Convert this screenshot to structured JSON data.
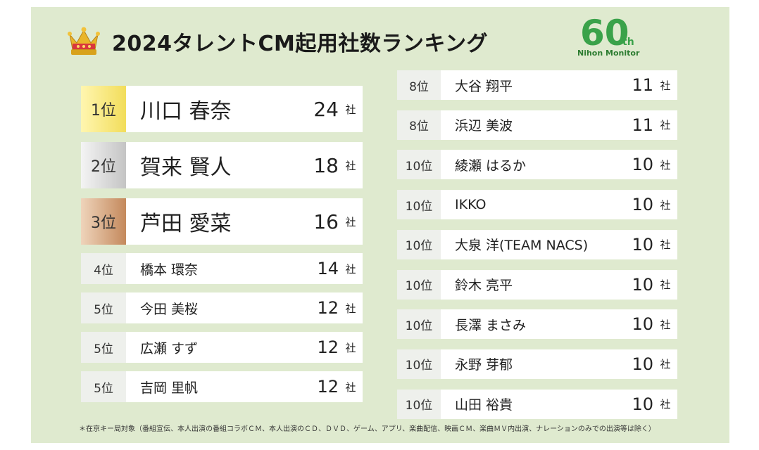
{
  "title": "2024タレントCM起用社数ランキング",
  "logo": {
    "number": "60",
    "suffix": "th",
    "name": "Nihon Monitor"
  },
  "unit": "社",
  "rankings_left": [
    {
      "rank": "1位",
      "name": "川口 春奈",
      "count": "24",
      "tier": "gold"
    },
    {
      "rank": "2位",
      "name": "賀来 賢人",
      "count": "18",
      "tier": "silver"
    },
    {
      "rank": "3位",
      "name": "芦田 愛菜",
      "count": "16",
      "tier": "bronze"
    },
    {
      "rank": "4位",
      "name": "橋本 環奈",
      "count": "14",
      "tier": "normal"
    },
    {
      "rank": "5位",
      "name": "今田 美桜",
      "count": "12",
      "tier": "normal"
    },
    {
      "rank": "5位",
      "name": "広瀬 すず",
      "count": "12",
      "tier": "normal"
    },
    {
      "rank": "5位",
      "name": "吉岡 里帆",
      "count": "12",
      "tier": "normal"
    }
  ],
  "rankings_right": [
    {
      "rank": "8位",
      "name": "大谷 翔平",
      "count": "11"
    },
    {
      "rank": "8位",
      "name": "浜辺 美波",
      "count": "11"
    },
    {
      "rank": "10位",
      "name": "綾瀬 はるか",
      "count": "10"
    },
    {
      "rank": "10位",
      "name": "IKKO",
      "count": "10"
    },
    {
      "rank": "10位",
      "name": "大泉 洋(TEAM NACS)",
      "count": "10"
    },
    {
      "rank": "10位",
      "name": "鈴木 亮平",
      "count": "10"
    },
    {
      "rank": "10位",
      "name": "長澤 まさみ",
      "count": "10"
    },
    {
      "rank": "10位",
      "name": "永野 芽郁",
      "count": "10"
    },
    {
      "rank": "10位",
      "name": "山田 裕貴",
      "count": "10"
    }
  ],
  "footnote": "＊在京キー局対象（番組宣伝、本人出演の番組コラボＣＭ、本人出演のＣＤ、ＤＶＤ、ゲーム、アプリ、楽曲配信、映画ＣＭ、楽曲ＭＶ内出演、ナレーションのみでの出演等は除く）"
}
